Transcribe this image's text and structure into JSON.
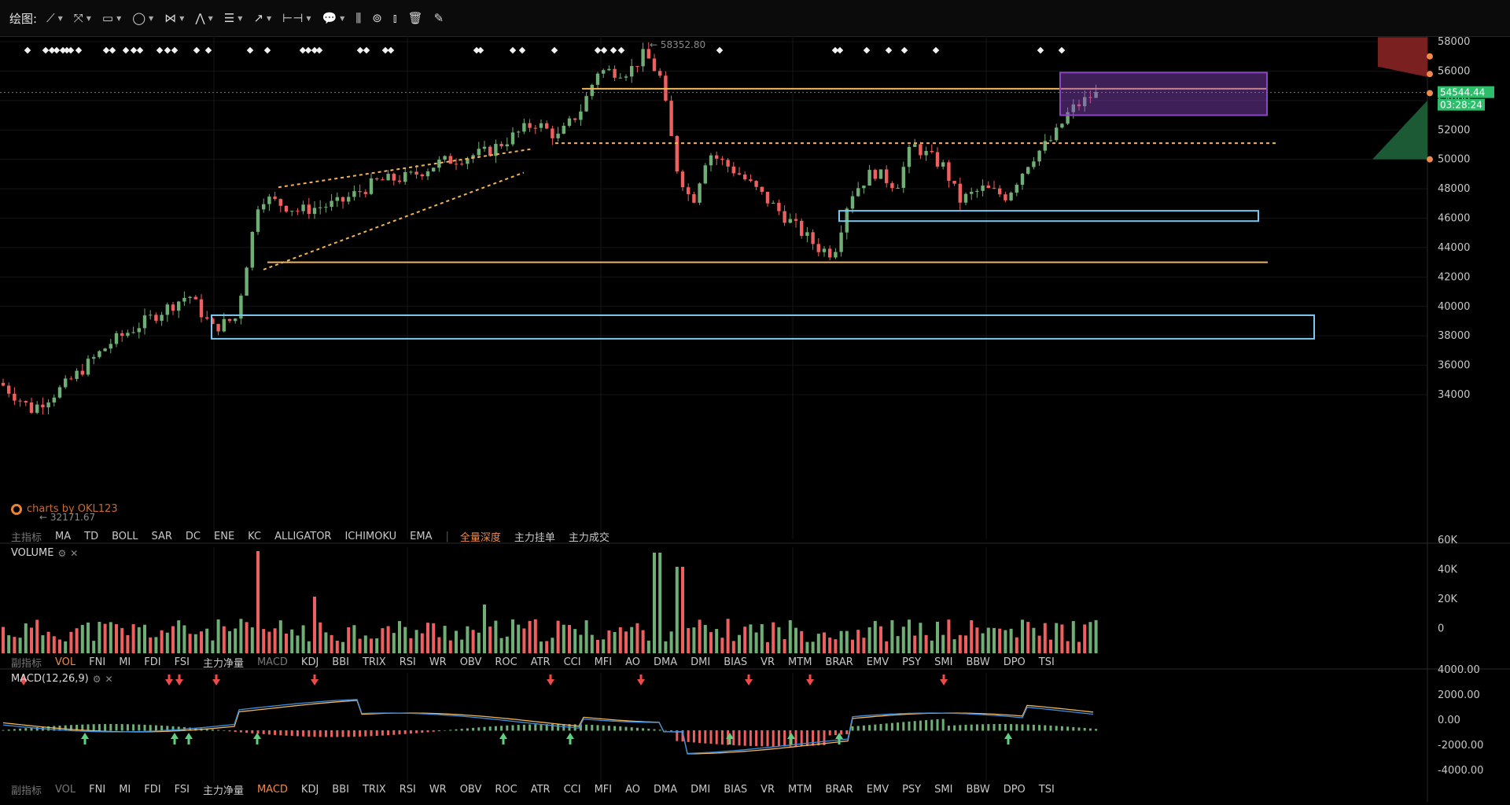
{
  "toolbar": {
    "label": "绘图:",
    "tools": [
      {
        "name": "trend-line-tool",
        "glyph": "⟋",
        "caret": true
      },
      {
        "name": "ray-tool",
        "glyph": "⤧",
        "caret": true
      },
      {
        "name": "rectangle-tool",
        "glyph": "▭",
        "caret": true
      },
      {
        "name": "ellipse-tool",
        "glyph": "◯",
        "caret": true
      },
      {
        "name": "path-tool",
        "glyph": "⋈",
        "caret": true
      },
      {
        "name": "pattern-tool",
        "glyph": "⋀",
        "caret": true
      },
      {
        "name": "fib-tool",
        "glyph": "☰",
        "caret": true
      },
      {
        "name": "arrow-tool",
        "glyph": "↗",
        "caret": true
      },
      {
        "name": "measure-tool",
        "glyph": "⊢⊣",
        "caret": true
      },
      {
        "name": "comment-tool",
        "glyph": "💬",
        "caret": true
      },
      {
        "name": "bar-tool",
        "glyph": "⫼",
        "caret": false
      },
      {
        "name": "indicator-tool",
        "glyph": "⊚",
        "caret": false
      },
      {
        "name": "volume-tool",
        "glyph": "⫾",
        "caret": false
      },
      {
        "name": "delete-tool",
        "glyph": "🗑",
        "caret": false
      },
      {
        "name": "draw-settings-tool",
        "glyph": "✎",
        "caret": false
      }
    ]
  },
  "price_axis": {
    "labels": [
      "58000",
      "56000",
      "54000",
      "52000",
      "50000",
      "48000",
      "46000",
      "44000",
      "42000",
      "40000",
      "38000",
      "36000",
      "34000"
    ],
    "current_price": "54544.44",
    "countdown": "03:28:24",
    "high_label": "58352.80",
    "low_label": "32171.67",
    "price_tag_color": "#2dbe6c"
  },
  "watermark": "charts by OKL123",
  "main_indicator_row": {
    "prefix": "主指标",
    "items": [
      "MA",
      "TD",
      "BOLL",
      "SAR",
      "DC",
      "ENE",
      "KC",
      "ALLIGATOR",
      "ICHIMOKU",
      "EMA"
    ],
    "extras": [
      "全量深度",
      "主力挂单",
      "主力成交"
    ],
    "active_extra": "全量深度"
  },
  "volume_pane": {
    "title": "VOLUME",
    "axis": [
      "60K",
      "40K",
      "20K",
      "0"
    ]
  },
  "sub_indicator_row_1": {
    "prefix": "副指标",
    "items": [
      "VOL",
      "FNI",
      "MI",
      "FDI",
      "FSI",
      "主力净量",
      "MACD",
      "KDJ",
      "BBI",
      "TRIX",
      "RSI",
      "WR",
      "OBV",
      "ROC",
      "ATR",
      "CCI",
      "MFI",
      "AO",
      "DMA",
      "DMI",
      "BIAS",
      "VR",
      "MTM",
      "BRAR",
      "EMV",
      "PSY",
      "SMI",
      "BBW",
      "DPO",
      "TSI"
    ],
    "active": "VOL",
    "muted": [
      "MACD"
    ]
  },
  "macd_pane": {
    "title": "MACD(12,26,9)",
    "axis": [
      "4000.00",
      "2000.00",
      "0.00",
      "-2000.00",
      "-4000.00"
    ]
  },
  "sub_indicator_row_2": {
    "prefix": "副指标",
    "items": [
      "VOL",
      "FNI",
      "MI",
      "FDI",
      "FSI",
      "主力净量",
      "MACD",
      "KDJ",
      "BBI",
      "TRIX",
      "RSI",
      "WR",
      "OBV",
      "ROC",
      "ATR",
      "CCI",
      "MFI",
      "AO",
      "DMA",
      "DMI",
      "BIAS",
      "VR",
      "MTM",
      "BRAR",
      "EMV",
      "PSY",
      "SMI",
      "BBW",
      "DPO",
      "TSI"
    ],
    "active": "MACD",
    "muted": [
      "VOL"
    ]
  },
  "colors": {
    "up": "#6fae74",
    "down": "#ee5f5f",
    "orange": "#f0b45a",
    "box_blue": "#7cc7f0",
    "box_purple": "#8b45c4"
  }
}
